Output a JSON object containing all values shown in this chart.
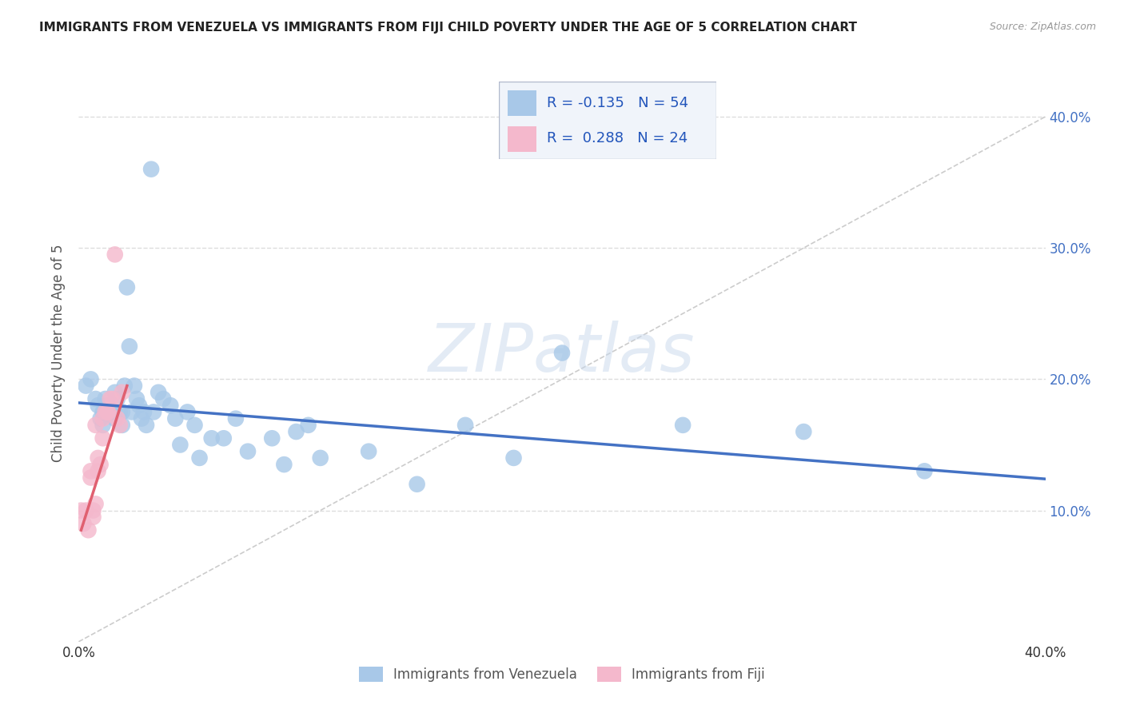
{
  "title": "IMMIGRANTS FROM VENEZUELA VS IMMIGRANTS FROM FIJI CHILD POVERTY UNDER THE AGE OF 5 CORRELATION CHART",
  "source": "Source: ZipAtlas.com",
  "ylabel": "Child Poverty Under the Age of 5",
  "legend_R1": "-0.135",
  "legend_N1": "54",
  "legend_R2": "0.288",
  "legend_N2": "24",
  "color_venezuela": "#a8c8e8",
  "color_fiji": "#f4b8cc",
  "color_trend_venezuela": "#4472c4",
  "color_trend_fiji": "#e06070",
  "color_diagonal": "#cccccc",
  "watermark_text": "ZIPatlas",
  "xlim": [
    0.0,
    0.4
  ],
  "ylim": [
    0.0,
    0.44
  ],
  "venezuela_x": [
    0.003,
    0.005,
    0.007,
    0.008,
    0.009,
    0.01,
    0.01,
    0.011,
    0.012,
    0.013,
    0.014,
    0.015,
    0.015,
    0.016,
    0.017,
    0.018,
    0.018,
    0.019,
    0.02,
    0.021,
    0.022,
    0.023,
    0.024,
    0.025,
    0.026,
    0.027,
    0.028,
    0.03,
    0.031,
    0.033,
    0.035,
    0.038,
    0.04,
    0.042,
    0.045,
    0.048,
    0.05,
    0.055,
    0.06,
    0.065,
    0.07,
    0.08,
    0.085,
    0.09,
    0.095,
    0.1,
    0.12,
    0.14,
    0.16,
    0.18,
    0.2,
    0.25,
    0.3,
    0.35
  ],
  "venezuela_y": [
    0.195,
    0.2,
    0.185,
    0.18,
    0.17,
    0.175,
    0.165,
    0.185,
    0.18,
    0.175,
    0.175,
    0.19,
    0.17,
    0.185,
    0.175,
    0.175,
    0.165,
    0.195,
    0.27,
    0.225,
    0.175,
    0.195,
    0.185,
    0.18,
    0.17,
    0.175,
    0.165,
    0.36,
    0.175,
    0.19,
    0.185,
    0.18,
    0.17,
    0.15,
    0.175,
    0.165,
    0.14,
    0.155,
    0.155,
    0.17,
    0.145,
    0.155,
    0.135,
    0.16,
    0.165,
    0.14,
    0.145,
    0.12,
    0.165,
    0.14,
    0.22,
    0.165,
    0.16,
    0.13
  ],
  "fiji_x": [
    0.001,
    0.002,
    0.003,
    0.004,
    0.005,
    0.005,
    0.006,
    0.006,
    0.007,
    0.007,
    0.008,
    0.008,
    0.009,
    0.01,
    0.01,
    0.011,
    0.012,
    0.012,
    0.013,
    0.014,
    0.015,
    0.016,
    0.017,
    0.018
  ],
  "fiji_y": [
    0.1,
    0.09,
    0.1,
    0.085,
    0.125,
    0.13,
    0.1,
    0.095,
    0.105,
    0.165,
    0.13,
    0.14,
    0.135,
    0.155,
    0.17,
    0.175,
    0.175,
    0.175,
    0.185,
    0.185,
    0.295,
    0.17,
    0.165,
    0.19
  ],
  "trend_v_x0": 0.0,
  "trend_v_x1": 0.4,
  "trend_v_y0": 0.182,
  "trend_v_y1": 0.124,
  "trend_f_x0": 0.001,
  "trend_f_x1": 0.02,
  "trend_f_y0": 0.085,
  "trend_f_y1": 0.195
}
